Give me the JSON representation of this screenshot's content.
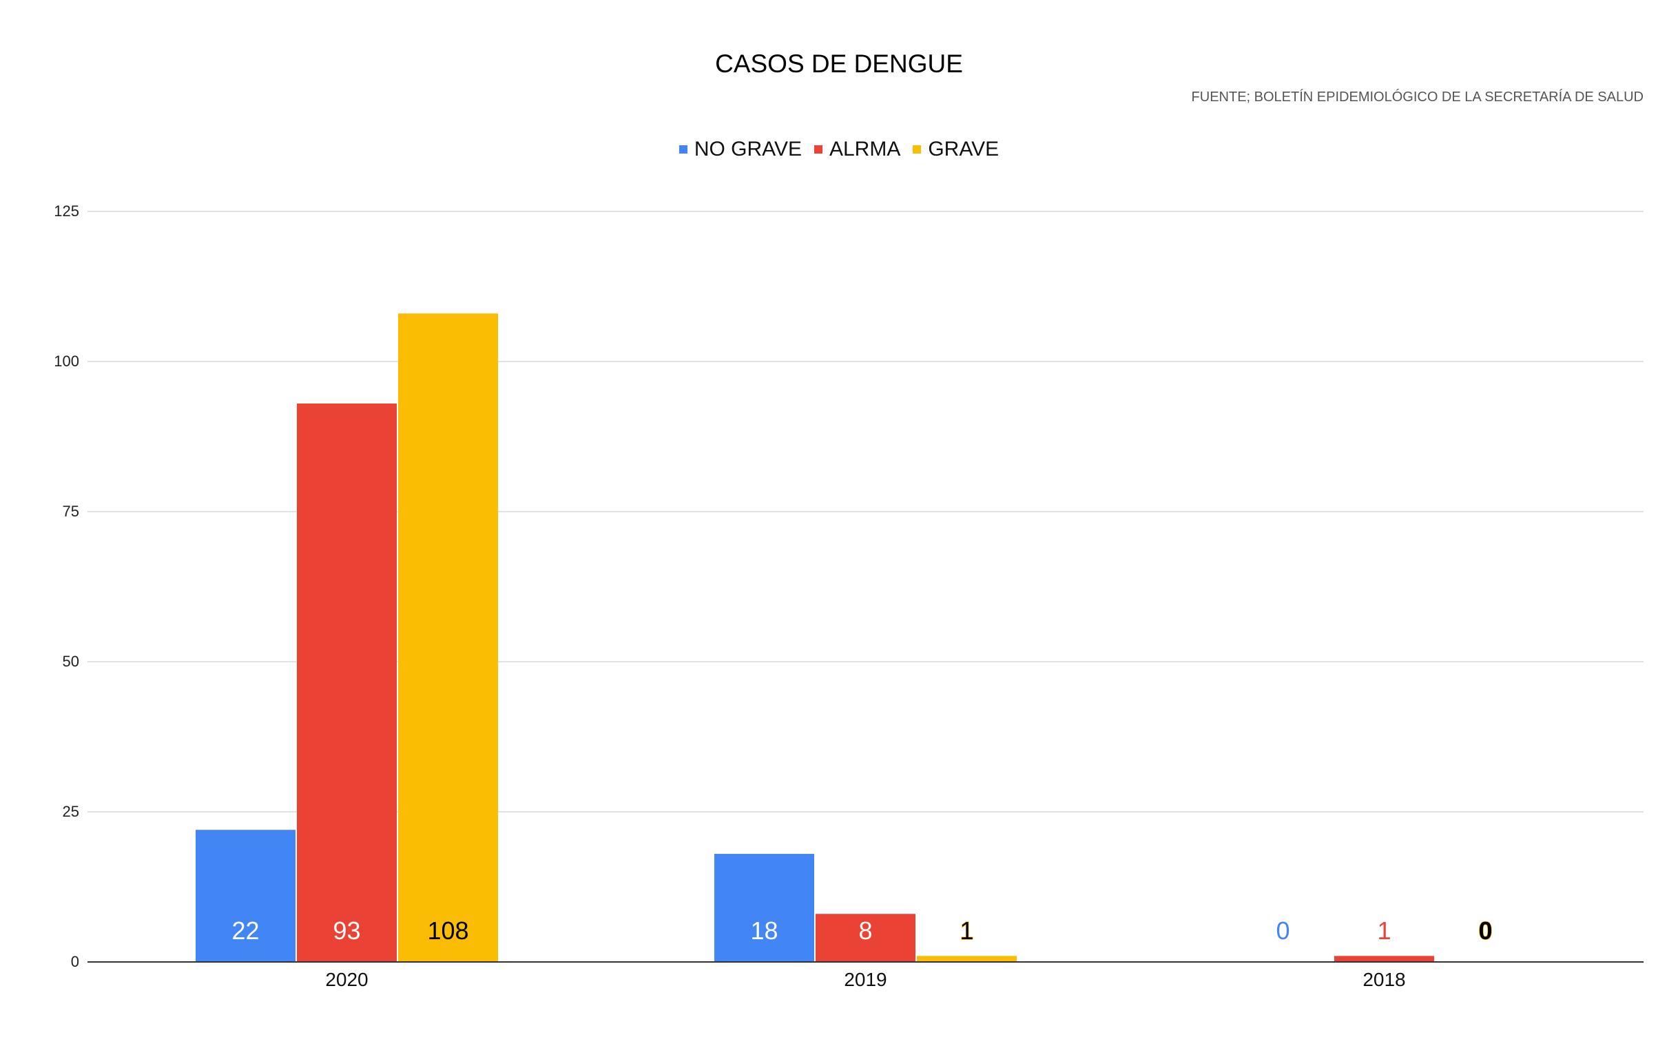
{
  "chart_data": {
    "type": "bar",
    "title": "CASOS DE DENGUE",
    "subtitle": "FUENTE; BOLETÍN EPIDEMIOLÓGICO DE LA SECRETARÍA DE SALUD",
    "categories": [
      "2020",
      "2019",
      "2018"
    ],
    "series": [
      {
        "name": "NO GRAVE",
        "color": "#4285F4",
        "values": [
          22,
          18,
          0
        ],
        "label_colors": [
          "#ffffff",
          "#ffffff",
          "#4285F4"
        ]
      },
      {
        "name": "ALRMA",
        "color": "#EA4335",
        "values": [
          93,
          8,
          1
        ],
        "label_colors": [
          "#ffffff",
          "#ffffff",
          "#EA4335"
        ]
      },
      {
        "name": "GRAVE",
        "color": "#FBBC04",
        "values": [
          108,
          1,
          0
        ],
        "label_colors": [
          "#000000",
          "#000000",
          "#000000"
        ]
      }
    ],
    "yticks": [
      "0",
      "25",
      "50",
      "75",
      "100",
      "125"
    ],
    "ylim": [
      0,
      125
    ],
    "grid": true,
    "legend_position": "top"
  }
}
